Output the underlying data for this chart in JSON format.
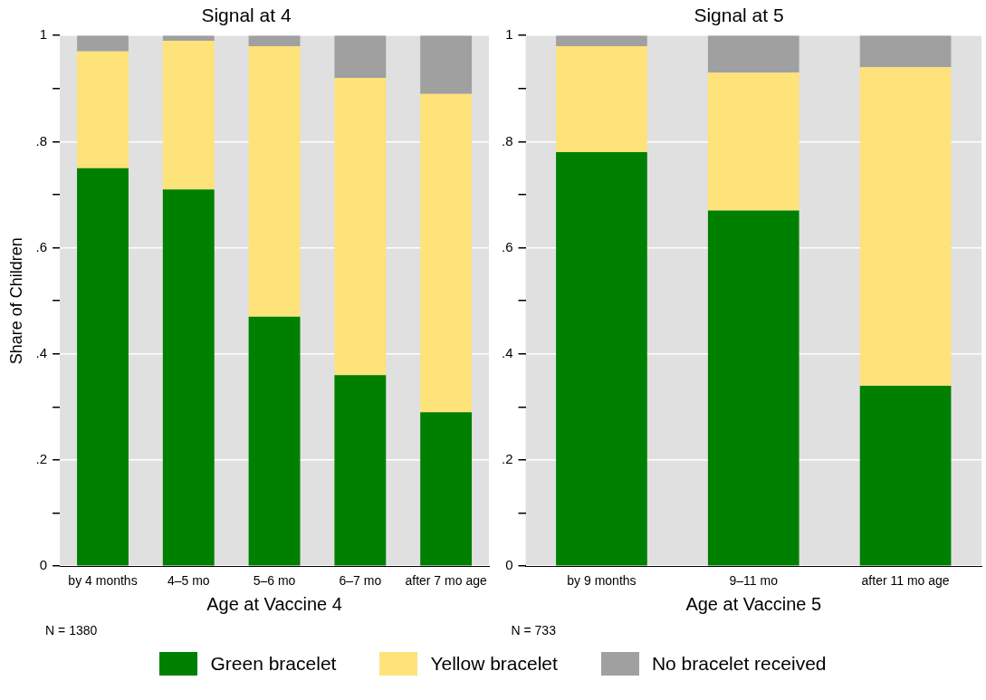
{
  "chart_data": [
    {
      "type": "bar",
      "stacked": true,
      "title": "Signal at 4",
      "xlabel": "Age at Vaccine 4",
      "ylabel": "Share of Children",
      "categories": [
        "by 4 months",
        "4–5 mo",
        "5–6 mo",
        "6–7 mo",
        "after 7 mo age"
      ],
      "series": [
        {
          "name": "Green bracelet",
          "color": "#008000",
          "values": [
            0.75,
            0.71,
            0.47,
            0.36,
            0.29
          ]
        },
        {
          "name": "Yellow bracelet",
          "color": "#fee27a",
          "values": [
            0.22,
            0.28,
            0.51,
            0.56,
            0.6
          ]
        },
        {
          "name": "No bracelet received",
          "color": "#a0a0a0",
          "values": [
            0.03,
            0.01,
            0.02,
            0.08,
            0.11
          ]
        }
      ],
      "ylim": [
        0,
        1
      ],
      "yticks": [
        {
          "value": 0,
          "label": "0"
        },
        {
          "value": 0.1,
          "label": null
        },
        {
          "value": 0.2,
          "label": ".2"
        },
        {
          "value": 0.3,
          "label": null
        },
        {
          "value": 0.4,
          "label": ".4"
        },
        {
          "value": 0.5,
          "label": null
        },
        {
          "value": 0.6,
          "label": ".6"
        },
        {
          "value": 0.7,
          "label": null
        },
        {
          "value": 0.8,
          "label": ".8"
        },
        {
          "value": 0.9,
          "label": null
        },
        {
          "value": 1,
          "label": "1"
        }
      ],
      "grid": "y",
      "legend": "bottom",
      "annotations": [
        "N = 1380"
      ]
    },
    {
      "type": "bar",
      "stacked": true,
      "title": "Signal at 5",
      "xlabel": "Age at Vaccine 5",
      "categories": [
        "by 9 months",
        "9–11 mo",
        "after 11 mo age"
      ],
      "series": [
        {
          "color": "#008000",
          "values": [
            0.78,
            0.67,
            0.34
          ]
        },
        {
          "color": "#fee27a",
          "values": [
            0.2,
            0.26,
            0.6
          ]
        },
        {
          "color": "#a0a0a0",
          "values": [
            0.02,
            0.07,
            0.06
          ]
        }
      ],
      "ylim": [
        0,
        1
      ],
      "yticks": [
        {
          "value": 0,
          "label": "0"
        },
        {
          "value": 0.1,
          "label": null
        },
        {
          "value": 0.2,
          "label": ".2"
        },
        {
          "value": 0.3,
          "label": null
        },
        {
          "value": 0.4,
          "label": ".4"
        },
        {
          "value": 0.5,
          "label": null
        },
        {
          "value": 0.6,
          "label": ".6"
        },
        {
          "value": 0.7,
          "label": null
        },
        {
          "value": 0.8,
          "label": ".8"
        },
        {
          "value": 0.9,
          "label": null
        },
        {
          "value": 1,
          "label": "1"
        }
      ],
      "grid": "y",
      "annotations": [
        "N = 733"
      ]
    }
  ]
}
